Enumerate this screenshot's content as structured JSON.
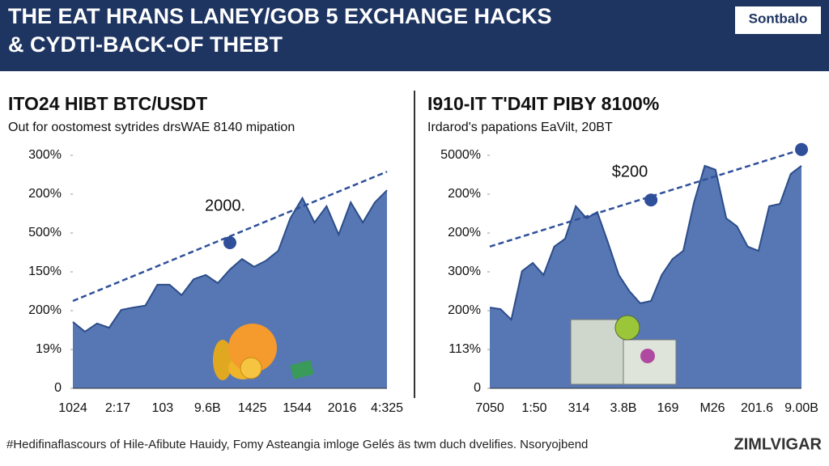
{
  "header": {
    "title_lines": [
      "THE EAT HRANS LANEY/GOB 5 EXCHANGE HACKS",
      "& CYDTI-BACK-OF THEBT"
    ],
    "logo": "Sontbalo"
  },
  "chart_data": [
    {
      "type": "area",
      "title": "ITO24 HIBT BTC/USDT",
      "subtitle": "Out for oostomest sytrides drsWAE 8140 mipation",
      "ylim": [
        0,
        6.5
      ],
      "yticks": [
        {
          "value": 0,
          "label": "0"
        },
        {
          "value": 1,
          "label": "19%"
        },
        {
          "value": 2,
          "label": "200%"
        },
        {
          "value": 3,
          "label": "150%"
        },
        {
          "value": 4,
          "label": "500%"
        },
        {
          "value": 5,
          "label": "200%"
        },
        {
          "value": 6,
          "label": "300%"
        }
      ],
      "x_tick_labels": [
        "1024",
        "2:17",
        "103",
        "9.6B",
        "1425",
        "1544",
        "2016",
        "4:325"
      ],
      "series": [
        {
          "color": "#5677b3",
          "values": [
            1.71,
            1.46,
            1.67,
            1.56,
            2.02,
            2.08,
            2.13,
            2.67,
            2.67,
            2.4,
            2.81,
            2.92,
            2.71,
            3.06,
            3.33,
            3.13,
            3.29,
            3.54,
            4.38,
            4.9,
            4.27,
            4.69,
            3.96,
            4.79,
            4.27,
            4.79,
            5.1
          ]
        }
      ],
      "trend": {
        "color": "#2f4f9a",
        "values": [
          2.25,
          5.58
        ]
      },
      "marker": {
        "index": 13,
        "value": 3.75
      },
      "annotation": "2000."
    },
    {
      "type": "area",
      "title": "I910-IT T'D4IT PIBY 8100%",
      "subtitle": "Irdarod's papations EaVilt, 20BT",
      "ylim": [
        0,
        6.5
      ],
      "yticks": [
        {
          "value": 0,
          "label": "0"
        },
        {
          "value": 1,
          "label": "113%"
        },
        {
          "value": 2,
          "label": "200%"
        },
        {
          "value": 3,
          "label": "300%"
        },
        {
          "value": 4,
          "label": "200%"
        },
        {
          "value": 5,
          "label": "200%"
        },
        {
          "value": 6,
          "label": "5000%"
        }
      ],
      "x_tick_labels": [
        "7050",
        "1:50",
        "314",
        "3.8B",
        "169",
        "M26",
        "201.6",
        "9.00B"
      ],
      "series": [
        {
          "color": "#5677b3",
          "values": [
            2.08,
            2.04,
            1.77,
            3.02,
            3.23,
            2.92,
            3.65,
            3.85,
            4.69,
            4.38,
            4.54,
            3.75,
            2.92,
            2.5,
            2.19,
            2.25,
            2.92,
            3.33,
            3.54,
            4.79,
            5.73,
            5.63,
            4.38,
            4.17,
            3.65,
            3.54,
            4.69,
            4.75,
            5.52,
            5.73
          ]
        }
      ],
      "trend": {
        "color": "#2f4f9a",
        "values": [
          3.65,
          6.15
        ]
      },
      "marker": {
        "index": 15,
        "value": 4.85
      },
      "end_marker": true,
      "annotation": "$200"
    }
  ],
  "footer": {
    "caption": "#Hedifinaflascours of Hile-Afibute Hauidy, Fomy Asteangia imloge Gelés äs twm duch dvelifies. Nsoryojbend",
    "brand": "ZIMLVIGAR"
  }
}
